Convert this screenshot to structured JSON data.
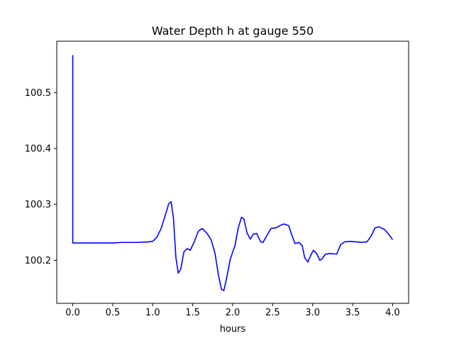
{
  "chart_data": {
    "type": "line",
    "title": "Water Depth h at gauge 550",
    "xlabel": "hours",
    "ylabel": "",
    "xlim": [
      -0.2,
      4.2
    ],
    "ylim": [
      100.123,
      100.592
    ],
    "xticks": [
      0.0,
      0.5,
      1.0,
      1.5,
      2.0,
      2.5,
      3.0,
      3.5,
      4.0
    ],
    "xtick_labels": [
      "0.0",
      "0.5",
      "1.0",
      "1.5",
      "2.0",
      "2.5",
      "3.0",
      "3.5",
      "4.0"
    ],
    "yticks": [
      100.2,
      100.3,
      100.4,
      100.5
    ],
    "ytick_labels": [
      "100.2",
      "100.3",
      "100.4",
      "100.5"
    ],
    "grid": false,
    "series": [
      {
        "color": "#0000ff",
        "points": [
          [
            0.0,
            100.567
          ],
          [
            0.0,
            100.231
          ],
          [
            0.1,
            100.231
          ],
          [
            0.3,
            100.231
          ],
          [
            0.5,
            100.231
          ],
          [
            0.6,
            100.232
          ],
          [
            0.8,
            100.232
          ],
          [
            0.95,
            100.233
          ],
          [
            1.0,
            100.234
          ],
          [
            1.05,
            100.241
          ],
          [
            1.1,
            100.255
          ],
          [
            1.15,
            100.277
          ],
          [
            1.2,
            100.301
          ],
          [
            1.23,
            100.305
          ],
          [
            1.26,
            100.275
          ],
          [
            1.29,
            100.205
          ],
          [
            1.32,
            100.177
          ],
          [
            1.35,
            100.184
          ],
          [
            1.39,
            100.215
          ],
          [
            1.43,
            100.221
          ],
          [
            1.47,
            100.218
          ],
          [
            1.52,
            100.233
          ],
          [
            1.57,
            100.252
          ],
          [
            1.62,
            100.257
          ],
          [
            1.68,
            100.248
          ],
          [
            1.73,
            100.237
          ],
          [
            1.78,
            100.212
          ],
          [
            1.82,
            100.175
          ],
          [
            1.86,
            100.148
          ],
          [
            1.89,
            100.146
          ],
          [
            1.93,
            100.172
          ],
          [
            1.97,
            100.202
          ],
          [
            2.03,
            100.227
          ],
          [
            2.07,
            100.258
          ],
          [
            2.11,
            100.277
          ],
          [
            2.14,
            100.274
          ],
          [
            2.18,
            100.249
          ],
          [
            2.22,
            100.238
          ],
          [
            2.26,
            100.247
          ],
          [
            2.3,
            100.248
          ],
          [
            2.35,
            100.233
          ],
          [
            2.38,
            100.232
          ],
          [
            2.43,
            100.245
          ],
          [
            2.48,
            100.257
          ],
          [
            2.54,
            100.258
          ],
          [
            2.59,
            100.262
          ],
          [
            2.64,
            100.265
          ],
          [
            2.7,
            100.262
          ],
          [
            2.74,
            100.245
          ],
          [
            2.78,
            100.23
          ],
          [
            2.83,
            100.232
          ],
          [
            2.87,
            100.226
          ],
          [
            2.9,
            100.205
          ],
          [
            2.94,
            100.197
          ],
          [
            2.98,
            100.21
          ],
          [
            3.01,
            100.218
          ],
          [
            3.05,
            100.212
          ],
          [
            3.09,
            100.2
          ],
          [
            3.12,
            100.203
          ],
          [
            3.16,
            100.211
          ],
          [
            3.22,
            100.212
          ],
          [
            3.3,
            100.211
          ],
          [
            3.35,
            100.228
          ],
          [
            3.4,
            100.233
          ],
          [
            3.47,
            100.234
          ],
          [
            3.53,
            100.233
          ],
          [
            3.62,
            100.232
          ],
          [
            3.68,
            100.233
          ],
          [
            3.73,
            100.243
          ],
          [
            3.78,
            100.258
          ],
          [
            3.83,
            100.26
          ],
          [
            3.9,
            100.255
          ],
          [
            3.96,
            100.245
          ],
          [
            4.0,
            100.237
          ]
        ]
      }
    ]
  }
}
